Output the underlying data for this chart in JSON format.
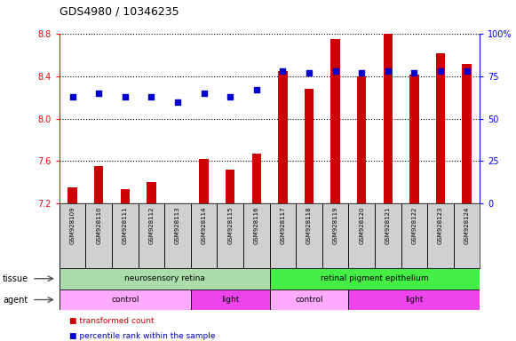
{
  "title": "GDS4980 / 10346235",
  "samples": [
    "GSM928109",
    "GSM928110",
    "GSM928111",
    "GSM928112",
    "GSM928113",
    "GSM928114",
    "GSM928115",
    "GSM928116",
    "GSM928117",
    "GSM928118",
    "GSM928119",
    "GSM928120",
    "GSM928121",
    "GSM928122",
    "GSM928123",
    "GSM928124"
  ],
  "transformed_count": [
    7.35,
    7.55,
    7.33,
    7.4,
    7.2,
    7.62,
    7.52,
    7.67,
    8.45,
    8.28,
    8.75,
    8.4,
    8.8,
    8.42,
    8.62,
    8.52
  ],
  "percentile_rank": [
    63,
    65,
    63,
    63,
    60,
    65,
    63,
    67,
    78,
    77,
    78,
    77,
    78,
    77,
    78,
    78
  ],
  "ylim_left": [
    7.2,
    8.8
  ],
  "ylim_right": [
    0,
    100
  ],
  "yticks_left": [
    7.2,
    7.6,
    8.0,
    8.4,
    8.8
  ],
  "yticks_right": [
    0,
    25,
    50,
    75,
    100
  ],
  "bar_color": "#cc0000",
  "dot_color": "#0000cc",
  "tissue_groups": [
    {
      "label": "neurosensory retina",
      "start": 0,
      "end": 8,
      "color": "#aaddaa"
    },
    {
      "label": "retinal pigment epithelium",
      "start": 8,
      "end": 16,
      "color": "#44ee44"
    }
  ],
  "agent_groups": [
    {
      "label": "control",
      "start": 0,
      "end": 5,
      "color": "#ffaaff"
    },
    {
      "label": "light",
      "start": 5,
      "end": 8,
      "color": "#ee44ee"
    },
    {
      "label": "control",
      "start": 8,
      "end": 11,
      "color": "#ffaaff"
    },
    {
      "label": "light",
      "start": 11,
      "end": 16,
      "color": "#ee44ee"
    }
  ],
  "tissue_label": "tissue",
  "agent_label": "agent",
  "legend_bar_label": "transformed count",
  "legend_dot_label": "percentile rank within the sample"
}
